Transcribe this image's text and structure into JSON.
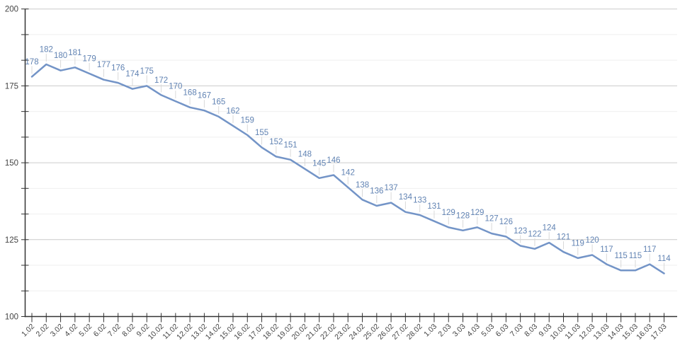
{
  "chart_data": {
    "type": "line",
    "title": "",
    "xlabel": "",
    "ylabel": "",
    "x": [
      "1.02",
      "2.02",
      "3.02",
      "4.02",
      "5.02",
      "6.02",
      "7.02",
      "8.02",
      "9.02",
      "10.02",
      "11.02",
      "12.02",
      "13.02",
      "14.02",
      "15.02",
      "16.02",
      "17.02",
      "18.02",
      "19.02",
      "20.02",
      "21.02",
      "22.02",
      "23.02",
      "24.02",
      "25.02",
      "26.02",
      "27.02",
      "28.02",
      "1.03",
      "2.03",
      "3.03",
      "4.03",
      "5.03",
      "6.03",
      "7.03",
      "8.03",
      "9.03",
      "10.03",
      "11.03",
      "12.03",
      "13.03",
      "14.03",
      "15.03",
      "16.03",
      "17.03"
    ],
    "values": [
      178,
      182,
      180,
      181,
      179,
      177,
      176,
      174,
      175,
      172,
      170,
      168,
      167,
      165,
      162,
      159,
      155,
      152,
      151,
      148,
      145,
      146,
      142,
      138,
      136,
      137,
      134,
      133,
      131,
      129,
      128,
      129,
      127,
      126,
      123,
      122,
      124,
      121,
      119,
      120,
      117,
      115,
      115,
      117,
      114
    ],
    "data_labels_shown": true,
    "ylim": [
      100,
      200
    ],
    "yticks": [
      100,
      125,
      150,
      175,
      200
    ],
    "minor_gridlines_per_major_interval": 2,
    "grid": true,
    "legend_position": "none",
    "x_label_rotation_deg": -45,
    "colors": {
      "series_line": "#7394c7",
      "annotation_text": "#6183b3",
      "annotation_stem": "#d9d9d9",
      "major_gridline": "#cccccc",
      "minor_gridline": "#efefef",
      "axis_line": "#333333",
      "tick": "#333333",
      "axis_label": "#444444",
      "background": "#ffffff"
    }
  }
}
